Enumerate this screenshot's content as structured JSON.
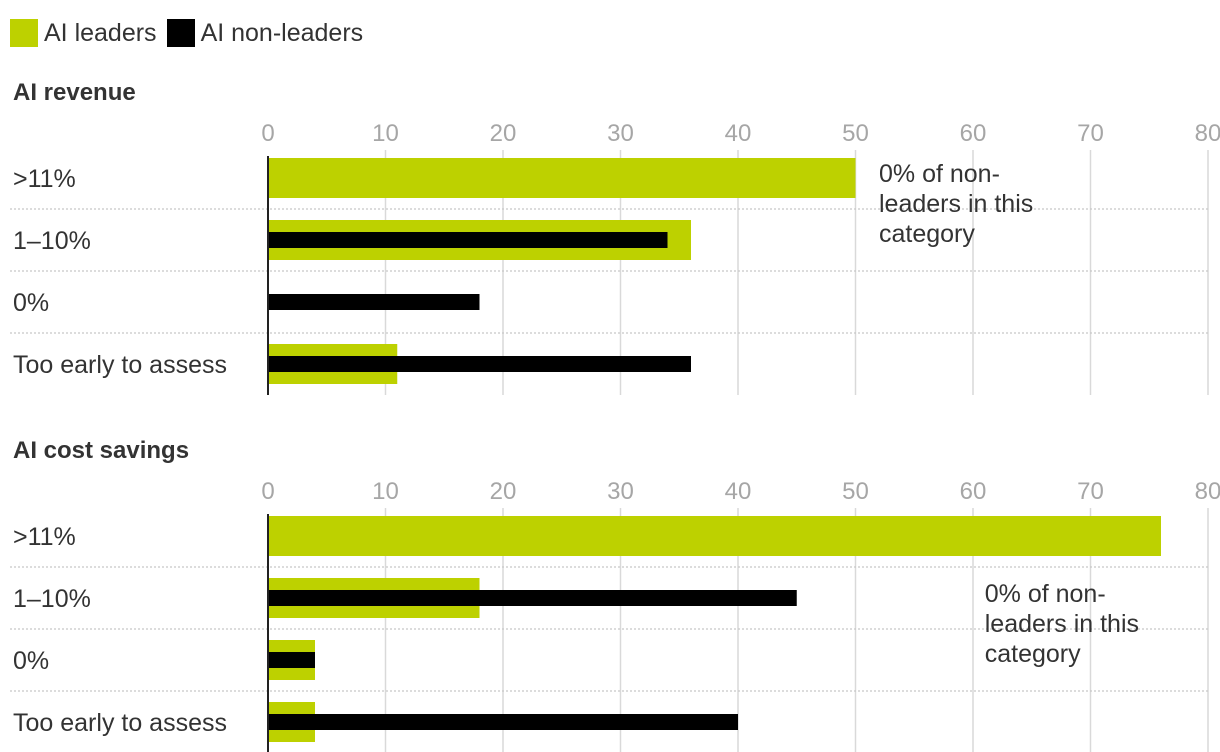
{
  "legend": {
    "items": [
      {
        "label": "AI leaders",
        "color": "#bdd100"
      },
      {
        "label": "AI non-leaders",
        "color": "#000000"
      }
    ]
  },
  "colors": {
    "leaders": "#bdd100",
    "non_leaders": "#000000",
    "grid": "#d9d9d9",
    "tick_text": "#a6a6a6",
    "text": "#333333"
  },
  "chart_data": [
    {
      "type": "bar",
      "orientation": "horizontal",
      "title": "AI revenue",
      "categories": [
        ">11%",
        "1–10%",
        "0%",
        "Too early to assess"
      ],
      "xlim": [
        0,
        80
      ],
      "xticks": [
        0,
        10,
        20,
        30,
        40,
        50,
        60,
        70,
        80
      ],
      "grid": true,
      "legend_position": "top-left",
      "series": [
        {
          "name": "AI leaders",
          "values": [
            50,
            36,
            0,
            11
          ]
        },
        {
          "name": "AI non-leaders",
          "values": [
            0,
            34,
            18,
            36
          ]
        }
      ],
      "annotation": {
        "lines": [
          "0% of non-",
          "leaders in this",
          "category"
        ],
        "x": 52,
        "category_index": 0
      }
    },
    {
      "type": "bar",
      "orientation": "horizontal",
      "title": "AI cost savings",
      "categories": [
        ">11%",
        "1–10%",
        "0%",
        "Too early to assess"
      ],
      "xlim": [
        0,
        80
      ],
      "xticks": [
        0,
        10,
        20,
        30,
        40,
        50,
        60,
        70,
        80
      ],
      "grid": true,
      "series": [
        {
          "name": "AI leaders",
          "values": [
            76,
            18,
            4,
            4
          ]
        },
        {
          "name": "AI non-leaders",
          "values": [
            0,
            45,
            4,
            40
          ]
        }
      ],
      "annotation": {
        "lines": [
          "0% of non-",
          "leaders in this",
          "category"
        ],
        "x": 61,
        "category_index": 1
      }
    }
  ]
}
